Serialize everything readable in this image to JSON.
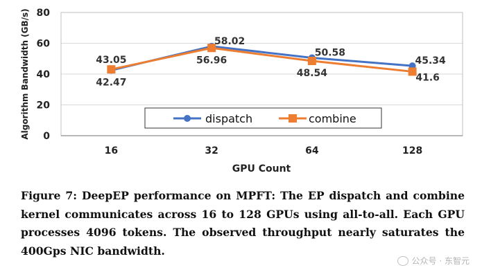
{
  "chart_data": {
    "type": "line",
    "categories": [
      "16",
      "32",
      "64",
      "128"
    ],
    "series": [
      {
        "name": "dispatch",
        "values": [
          42.47,
          58.02,
          50.58,
          45.34
        ],
        "color": "#4472C4",
        "marker": "circle"
      },
      {
        "name": "combine",
        "values": [
          43.05,
          56.96,
          48.54,
          41.6
        ],
        "color": "#ED7D31",
        "marker": "square"
      }
    ],
    "data_labels": [
      {
        "series": "dispatch",
        "category": "16",
        "text": "42.47",
        "placement": "below"
      },
      {
        "series": "combine",
        "category": "16",
        "text": "43.05",
        "placement": "above"
      },
      {
        "series": "dispatch",
        "category": "32",
        "text": "58.02",
        "placement": "above-right"
      },
      {
        "series": "combine",
        "category": "32",
        "text": "56.96",
        "placement": "below"
      },
      {
        "series": "dispatch",
        "category": "64",
        "text": "50.58",
        "placement": "above-right"
      },
      {
        "series": "combine",
        "category": "64",
        "text": "48.54",
        "placement": "below"
      },
      {
        "series": "dispatch",
        "category": "128",
        "text": "45.34",
        "placement": "above-right"
      },
      {
        "series": "combine",
        "category": "128",
        "text": "41.6",
        "placement": "below-right"
      }
    ],
    "xlabel": "GPU Count",
    "ylabel": "Algorithm Bandwidth (GB/s)",
    "ylim": [
      0,
      80
    ],
    "yticks": [
      "0",
      "20",
      "40",
      "60",
      "80"
    ],
    "grid": true,
    "legend_position": "bottom-center-inside"
  },
  "caption": "Figure 7: DeepEP performance on MPFT: The EP dispatch and combine kernel communicates across 16 to 128 GPUs using all-to-all. Each GPU processes 4096 tokens. The observed throughput nearly saturates the 400Gps NIC bandwidth.",
  "watermark": {
    "text": "公众号 · 东智元",
    "icon": "wechat-icon"
  }
}
